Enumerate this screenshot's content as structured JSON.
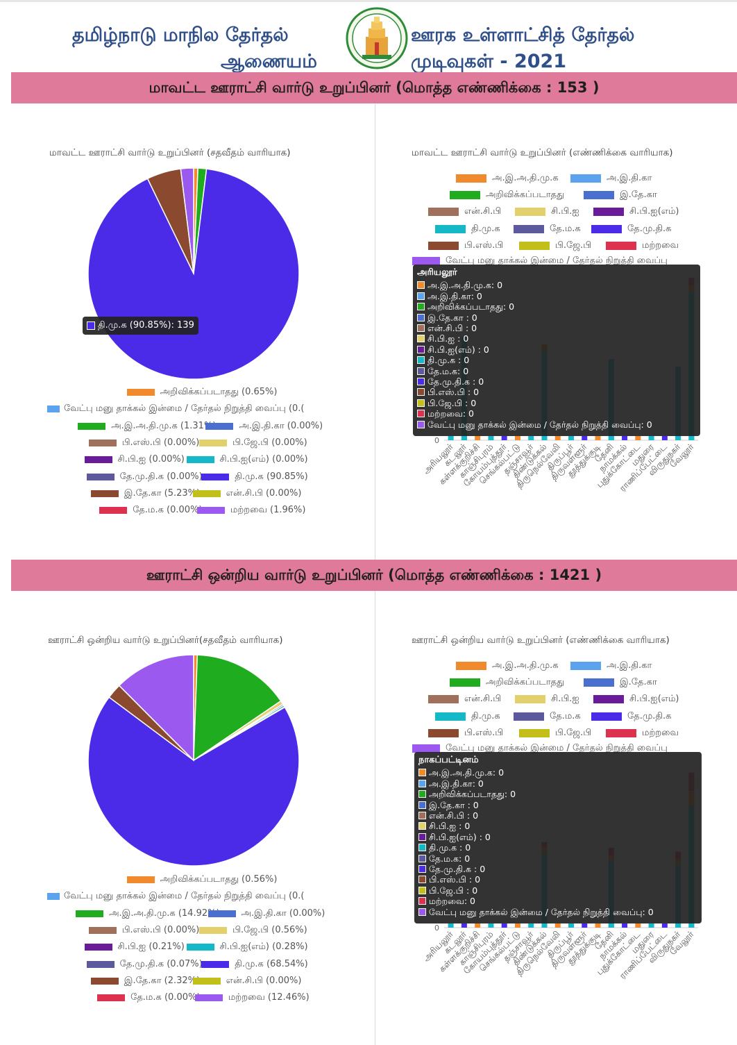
{
  "header": {
    "left_line1": "தமிழ்நாடு மாநில தேர்தல்",
    "left_line2": "ஆணையம்",
    "right_line1": "ஊரக உள்ளாட்சித் தேர்தல்",
    "right_line2": "முடிவுகள் - 2021",
    "emblem_icon": "tamil-nadu-emblem"
  },
  "colors": {
    "aiadmk": "#f08a2c",
    "inc": "#5ba3ef",
    "unrecognized": "#1fad1f",
    "iuml": "#4a6fd1",
    "ncp": "#a0705a",
    "cpi": "#e2d06c",
    "cpim": "#6a1b9a",
    "dmk": "#14b8c6",
    "dmdk": "#5c5a9c",
    "tmk": "#4b2ae8",
    "bsp": "#8b4a2f",
    "bjp": "#c2bf1a",
    "others": "#dc3250",
    "nomination": "#9b59f0",
    "section_bar": "#e07a9a"
  },
  "sections": [
    {
      "heading": "மாவட்ட ஊராட்சி வார்டு உறுப்பினர் (மொத்த எண்ணிக்கை : 153 )",
      "pie": {
        "title": "மாவட்ட ஊராட்சி வார்டு உறுப்பினர் (சதவீதம் வாரியாக)",
        "tooltip": "தி.மு.க (90.85%): 139",
        "legend": [
          {
            "label": "அறிவிக்கப்படாதது (0.65%)",
            "color_key": "aiadmk"
          },
          {
            "label": "வேட்பு மனு தாக்கல் இன்மை / தேர்தல் நிறுத்தி வைப்பு (0.(",
            "color_key": "inc"
          },
          {
            "label": "அ.இ.அ.தி.மு.க (1.31%)",
            "color_key": "unrecognized"
          },
          {
            "label": "அ.இ.தி.கா (0.00%)",
            "color_key": "iuml"
          },
          {
            "label": "பி.எஸ்.பி (0.00%)",
            "color_key": "ncp"
          },
          {
            "label": "பி.ஜே.பி (0.00%)",
            "color_key": "cpi"
          },
          {
            "label": "சி.பி.ஐ (0.00%)",
            "color_key": "cpim"
          },
          {
            "label": "சி.பி.ஐ(எம்) (0.00%)",
            "color_key": "dmk"
          },
          {
            "label": "தே.மு.தி.க (0.00%)",
            "color_key": "dmdk"
          },
          {
            "label": "தி.மு.க (90.85%)",
            "color_key": "tmk"
          },
          {
            "label": "இ.தே.கா (5.23%)",
            "color_key": "bsp"
          },
          {
            "label": "என்.சி.பி (0.00%)",
            "color_key": "bjp"
          },
          {
            "label": "தே.ம.க (0.00%)",
            "color_key": "others"
          },
          {
            "label": "மற்றவை (1.96%)",
            "color_key": "nomination"
          }
        ]
      },
      "bar": {
        "title": "மாவட்ட ஊராட்சி வார்டு உறுப்பினர் (எண்ணிக்கை வாரியாக)",
        "tooltip_title": "அரியலூர்",
        "zero_tick": "0",
        "legend_last": "வேட்பு மனு தாக்கல் இன்மை / தேர்தல் நிறுத்தி வைப்பு"
      }
    },
    {
      "heading": "ஊராட்சி ஒன்றிய வார்டு உறுப்பினர் (மொத்த எண்ணிக்கை : 1421 )",
      "pie": {
        "title": "ஊராட்சி ஒன்றிய வார்டு உறுப்பினர்(சதவீதம் வாரியாக)",
        "legend": [
          {
            "label": "அறிவிக்கப்படாதது (0.56%)",
            "color_key": "aiadmk"
          },
          {
            "label": "வேட்பு மனு தாக்கல் இன்மை / தேர்தல் நிறுத்தி வைப்பு (0.(",
            "color_key": "inc"
          },
          {
            "label": "அ.இ.அ.தி.மு.க (14.92%)",
            "color_key": "unrecognized"
          },
          {
            "label": "அ.இ.தி.கா (0.00%)",
            "color_key": "iuml"
          },
          {
            "label": "பி.எஸ்.பி (0.00%)",
            "color_key": "ncp"
          },
          {
            "label": "பி.ஜே.பி (0.56%)",
            "color_key": "cpi"
          },
          {
            "label": "சி.பி.ஐ (0.21%)",
            "color_key": "cpim"
          },
          {
            "label": "சி.பி.ஐ(எம்) (0.28%)",
            "color_key": "dmk"
          },
          {
            "label": "தே.மு.தி.க (0.07%)",
            "color_key": "dmdk"
          },
          {
            "label": "தி.மு.க (68.54%)",
            "color_key": "tmk"
          },
          {
            "label": "இ.தே.கா (2.32%)",
            "color_key": "bsp"
          },
          {
            "label": "என்.சி.பி (0.00%)",
            "color_key": "bjp"
          },
          {
            "label": "தே.ம.க (0.00%)",
            "color_key": "others"
          },
          {
            "label": "மற்றவை (12.46%)",
            "color_key": "nomination"
          }
        ]
      },
      "bar": {
        "title": "ஊராட்சி ஒன்றிய வார்டு உறுப்பினர் (எண்ணிக்கை வாரியாக)",
        "tooltip_title": "நாகப்பட்டினம்",
        "zero_tick": "0",
        "legend_last": "வேட்பு மனு தாக்கல் இன்மை / தேர்தல் நிறுத்தி வைப்பு"
      }
    }
  ],
  "bar_legend": [
    {
      "label": "அ.இ.அ.தி.மு.க",
      "color_key": "aiadmk"
    },
    {
      "label": "அ.இ.தி.கா",
      "color_key": "inc"
    },
    {
      "label": "அறிவிக்கப்படாதது",
      "color_key": "unrecognized"
    },
    {
      "label": "இ.தே.கா",
      "color_key": "iuml"
    },
    {
      "label": "என்.சி.பி",
      "color_key": "ncp"
    },
    {
      "label": "சி.பி.ஐ",
      "color_key": "cpi"
    },
    {
      "label": "சி.பி.ஐ(எம்)",
      "color_key": "cpim"
    },
    {
      "label": "தி.மு.க",
      "color_key": "dmk"
    },
    {
      "label": "தே.ம.க",
      "color_key": "dmdk"
    },
    {
      "label": "தே.மு.தி.க",
      "color_key": "tmk"
    },
    {
      "label": "பி.எஸ்.பி",
      "color_key": "bsp"
    },
    {
      "label": "பி.ஜே.பி",
      "color_key": "bjp"
    },
    {
      "label": "மற்றவை",
      "color_key": "others"
    }
  ],
  "tooltip_rows": [
    {
      "label": "அ.இ.அ.தி.மு.க: 0",
      "color_key": "aiadmk"
    },
    {
      "label": "அ.இ.தி.கா: 0",
      "color_key": "inc"
    },
    {
      "label": "அறிவிக்கப்படாதது: 0",
      "color_key": "unrecognized"
    },
    {
      "label": "இ.தே.கா : 0",
      "color_key": "iuml"
    },
    {
      "label": "என்.சி.பி : 0",
      "color_key": "ncp"
    },
    {
      "label": "சி.பி.ஐ : 0",
      "color_key": "cpi"
    },
    {
      "label": "சி.பி.ஐ(எம்) : 0",
      "color_key": "cpim"
    },
    {
      "label": "தி.மு.க : 0",
      "color_key": "dmk"
    },
    {
      "label": "தே.ம.க: 0",
      "color_key": "dmdk"
    },
    {
      "label": "தே.மு.தி.க : 0",
      "color_key": "tmk"
    },
    {
      "label": "பி.எஸ்.பி  : 0",
      "color_key": "bsp"
    },
    {
      "label": "பி.ஜே.பி  : 0",
      "color_key": "bjp"
    },
    {
      "label": "மற்றவை: 0",
      "color_key": "others"
    },
    {
      "label": "வேட்பு மனு தாக்கல் இன்மை / தேர்தல் நிறுத்தி வைப்பு: 0",
      "color_key": "nomination"
    }
  ],
  "districts": [
    "அரியலூர்",
    "கடலூர்",
    "கள்ளக்குறிச்சி",
    "காஞ்சிபுரம்",
    "கோயம்புத்தூர்",
    "செங்கல்பட்டு",
    "தஞ்சாவூர்",
    "திண்டுக்கல்",
    "திருநெல்வேலி",
    "திருப்பூர்",
    "திருவள்ளூர்",
    "தூத்துக்குடி",
    "தேனி",
    "நாமக்கல்",
    "புதுக்கோட்டை",
    "மதுரை",
    "ராணிப்பேட்டை",
    "விருதுநகர்",
    "வேலூர்"
  ],
  "chart_data": [
    {
      "type": "pie",
      "title": "மாவட்ட ஊராட்சி வார்டு உறுப்பினர் (சதவீதம் வாரியாக)",
      "slices": [
        {
          "name": "அறிவிக்கப்படாதது",
          "value": 0.65,
          "color_key": "aiadmk"
        },
        {
          "name": "அ.இ.அ.தி.மு.க",
          "value": 1.31,
          "color_key": "unrecognized"
        },
        {
          "name": "தி.மு.க",
          "value": 90.85,
          "color_key": "tmk"
        },
        {
          "name": "இ.தே.கா",
          "value": 5.23,
          "color_key": "bsp"
        },
        {
          "name": "மற்றவை",
          "value": 1.96,
          "color_key": "nomination"
        }
      ]
    },
    {
      "type": "bar",
      "title": "மாவட்ட ஊராட்சி வார்டு உறுப்பினர் (எண்ணிக்கை வாரியாக)",
      "categories": [
        "அரியலூர்",
        "கடலூர்",
        "கள்ளக்குறிச்சி",
        "காஞ்சிபுரம்",
        "கோயம்புத்தூர்",
        "செங்கல்பட்டு",
        "தஞ்சாவூர்",
        "திண்டுக்கல்",
        "திருநெல்வேலி",
        "திருப்பூர்",
        "திருவள்ளூர்",
        "தூத்துக்குடி",
        "தேனி",
        "நாமக்கல்",
        "புதுக்கோட்டை",
        "மதுரை",
        "ராணிப்பேட்டை",
        "விருதுநகர்",
        "வேலூர்"
      ],
      "series": [
        {
          "name": "தி.மு.க",
          "color_key": "dmk",
          "values": [
            0,
            14,
            0,
            0,
            0,
            0,
            0,
            12,
            0,
            0,
            0,
            0,
            11,
            0,
            0,
            0,
            0,
            10,
            20
          ]
        },
        {
          "name": "அ.இ.அ.தி.மு.க",
          "color_key": "aiadmk",
          "values": [
            0,
            0,
            0,
            0,
            0,
            0,
            0,
            1,
            0,
            0,
            0,
            0,
            0,
            0,
            0,
            0,
            0,
            0,
            1
          ]
        },
        {
          "name": "மற்றவை",
          "color_key": "others",
          "values": [
            0,
            0,
            0,
            0,
            0,
            0,
            0,
            0,
            0,
            0,
            0,
            0,
            0,
            0,
            0,
            0,
            0,
            0,
            1
          ]
        }
      ]
    },
    {
      "type": "pie",
      "title": "ஊராட்சி ஒன்றிய வார்டு உறுப்பினர்(சதவீதம் வாரியாக)",
      "slices": [
        {
          "name": "அறிவிக்கப்படாதது",
          "value": 0.56,
          "color_key": "aiadmk"
        },
        {
          "name": "அ.இ.அ.தி.மு.க",
          "value": 14.92,
          "color_key": "unrecognized"
        },
        {
          "name": "பி.ஜே.பி",
          "value": 0.56,
          "color_key": "cpi"
        },
        {
          "name": "சி.பி.ஐ",
          "value": 0.21,
          "color_key": "cpim"
        },
        {
          "name": "சி.பி.ஐ(எம்)",
          "value": 0.28,
          "color_key": "dmk"
        },
        {
          "name": "தே.மு.தி.க",
          "value": 0.07,
          "color_key": "dmdk"
        },
        {
          "name": "தி.மு.க",
          "value": 68.54,
          "color_key": "tmk"
        },
        {
          "name": "இ.தே.கா",
          "value": 2.32,
          "color_key": "bsp"
        },
        {
          "name": "மற்றவை",
          "value": 12.46,
          "color_key": "nomination"
        }
      ]
    },
    {
      "type": "bar",
      "title": "ஊராட்சி ஒன்றிய வார்டு உறுப்பினர் (எண்ணிக்கை வாரியாக)",
      "categories": [
        "அரியலூர்",
        "கடலூர்",
        "கள்ளக்குறிச்சி",
        "காஞ்சிபுரம்",
        "கோயம்புத்தூர்",
        "செங்கல்பட்டு",
        "தஞ்சாவூர்",
        "திண்டுக்கல்",
        "திருநெல்வேலி",
        "திருப்பூர்",
        "திருவள்ளூர்",
        "தூத்துக்குடி",
        "தேனி",
        "நாமக்கல்",
        "புதுக்கோட்டை",
        "மதுரை",
        "ராணிப்பேட்டை",
        "விருதுநகர்",
        "வேலூர்"
      ],
      "series": [
        {
          "name": "தி.மு.க",
          "color_key": "dmk",
          "values": [
            0,
            0,
            0,
            0,
            0,
            0,
            0,
            100,
            0,
            0,
            0,
            0,
            90,
            0,
            0,
            0,
            0,
            85,
            165
          ]
        },
        {
          "name": "அ.இ.அ.தி.மு.க",
          "color_key": "aiadmk",
          "values": [
            0,
            0,
            0,
            0,
            0,
            0,
            0,
            10,
            0,
            0,
            0,
            0,
            8,
            0,
            0,
            0,
            0,
            8,
            20
          ]
        },
        {
          "name": "மற்றவை",
          "color_key": "others",
          "values": [
            0,
            0,
            0,
            0,
            0,
            0,
            0,
            6,
            0,
            0,
            0,
            0,
            10,
            0,
            0,
            0,
            0,
            10,
            25
          ]
        }
      ]
    }
  ]
}
